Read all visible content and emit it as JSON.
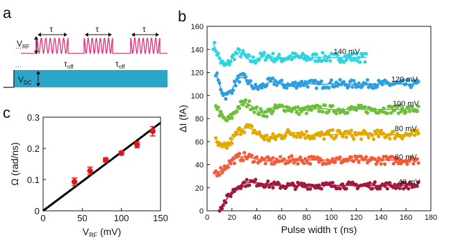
{
  "panels": {
    "a": {
      "label": "a",
      "vrf_label": "V",
      "vrf_sub": "RF",
      "vdc_label": "V",
      "vdc_sub": "DC",
      "tau": "τ",
      "toff_main": "τ",
      "toff_sub": "off",
      "colors": {
        "pulse": "#e0307a",
        "dc": "#2aa6c8"
      }
    },
    "b": {
      "label": "b",
      "series_labels": [
        "140 mV",
        "120 mV",
        "100 mV",
        "80 mV",
        "60 mV",
        "40 mV"
      ]
    },
    "c": {
      "label": "c"
    }
  },
  "chart_data": [
    {
      "type": "scatter",
      "panel": "b",
      "xlabel": "Pulse width τ (ns)",
      "ylabel": "ΔI (fA)",
      "xlim": [
        0,
        180
      ],
      "ylim": [
        0,
        160
      ],
      "xticks": [
        0,
        20,
        40,
        60,
        80,
        100,
        120,
        140,
        160,
        180
      ],
      "yticks": [
        0,
        20,
        40,
        60,
        80,
        100,
        120,
        140,
        160
      ],
      "series": [
        {
          "name": "140 mV",
          "color": "#2ed4e0",
          "x_range": [
            5,
            128
          ],
          "baseline": 133,
          "amp": 10,
          "period": 22,
          "decay": 20,
          "t0": 8,
          "phase": 1.1,
          "noise": 4
        },
        {
          "name": "120 mV",
          "color": "#2b9fe0",
          "x_range": [
            7,
            170
          ],
          "baseline": 110,
          "amp": 13,
          "period": 25,
          "decay": 24,
          "t0": 9,
          "phase": 1.35,
          "noise": 3.5
        },
        {
          "name": "100 mV",
          "color": "#6cbf3b",
          "x_range": [
            7,
            170
          ],
          "baseline": 88,
          "amp": 12,
          "period": 30,
          "decay": 28,
          "t0": 9,
          "phase": 1.6,
          "noise": 3.5
        },
        {
          "name": "80 mV",
          "color": "#e0a800",
          "x_range": [
            7,
            170
          ],
          "baseline": 66,
          "amp": 14,
          "period": 38,
          "decay": 30,
          "t0": 7,
          "phase": 2.0,
          "noise": 4
        },
        {
          "name": "60 mV",
          "color": "#f35c3a",
          "x_range": [
            6,
            170
          ],
          "baseline": 44,
          "amp": 12,
          "period": 45,
          "decay": 18,
          "t0": 6,
          "phase": 2.6,
          "noise": 3.5
        },
        {
          "name": "40 mV",
          "color": "#a3193c",
          "x_range": [
            10,
            170
          ],
          "baseline": 22,
          "amp": 20,
          "period": 60,
          "decay": 14,
          "t0": 10,
          "phase": 3.0,
          "noise": 3
        }
      ]
    },
    {
      "type": "scatter",
      "panel": "c",
      "xlabel_main": "V",
      "xlabel_sub": "RF",
      "xlabel_unit": " (mV)",
      "ylabel": "Ω (rad/ns)",
      "xlim": [
        0,
        150
      ],
      "ylim": [
        0,
        0.3
      ],
      "xticks": [
        0,
        50,
        100,
        150
      ],
      "yticks": [
        0,
        0.1,
        0.2,
        0.3
      ],
      "yticklabels": [
        "0",
        "0.1",
        "0.2",
        "0.3"
      ],
      "points": [
        {
          "x": 40,
          "y": 0.093,
          "err": 0.012
        },
        {
          "x": 60,
          "y": 0.128,
          "err": 0.012
        },
        {
          "x": 80,
          "y": 0.163,
          "err": 0.007
        },
        {
          "x": 100,
          "y": 0.185,
          "err": 0.006
        },
        {
          "x": 120,
          "y": 0.212,
          "err": 0.01
        },
        {
          "x": 140,
          "y": 0.255,
          "err": 0.015
        }
      ],
      "point_color": "#e01818",
      "fit": {
        "slope": 0.00188,
        "intercept": 0,
        "x_range": [
          0,
          150
        ],
        "color": "#000000"
      }
    }
  ]
}
